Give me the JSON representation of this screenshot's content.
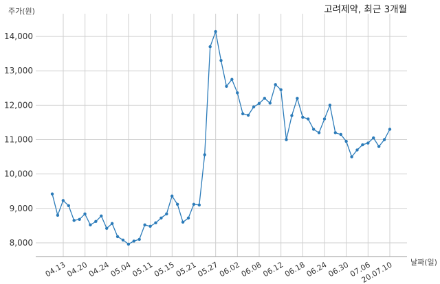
{
  "chart_data": {
    "type": "line",
    "title": "고려제약, 최근 3개월",
    "ylabel": "주가(원)",
    "xlabel": "날짜(일)",
    "ylim": [
      7600,
      14500
    ],
    "yticks": [
      8000,
      9000,
      10000,
      11000,
      12000,
      13000,
      14000
    ],
    "ytick_labels": [
      "8,000",
      "9,000",
      "10,000",
      "11,000",
      "12,000",
      "13,000",
      "14,000"
    ],
    "xtick_labels": [
      "04.13",
      "04.20",
      "04.24",
      "05.04",
      "05.11",
      "05.15",
      "05.21",
      "05.27",
      "06.02",
      "06.08",
      "06.12",
      "06.18",
      "06.24",
      "06.30",
      "07.06",
      "20.07.10"
    ],
    "grid": true,
    "line_color": "#2b7bb9",
    "series": [
      {
        "values": [
          9420,
          8800,
          9230,
          9080,
          8650,
          8680,
          8840,
          8520,
          8620,
          8780,
          8420,
          8560,
          8180,
          8080,
          7960,
          8050,
          8100,
          8520,
          8480,
          8580,
          8720,
          8840,
          9360,
          9120,
          8600,
          8720,
          9120,
          9100,
          10560,
          13700,
          14140,
          13300,
          12550,
          12750,
          12360,
          11750,
          11710,
          11950,
          12050,
          12200,
          12060,
          12600,
          12450,
          11000,
          11700,
          12200,
          11650,
          11600,
          11300,
          11200,
          11600,
          12000,
          11200,
          11150,
          10950,
          10500,
          10700,
          10850,
          10900,
          11050,
          10800,
          11000,
          11300
        ]
      }
    ]
  }
}
